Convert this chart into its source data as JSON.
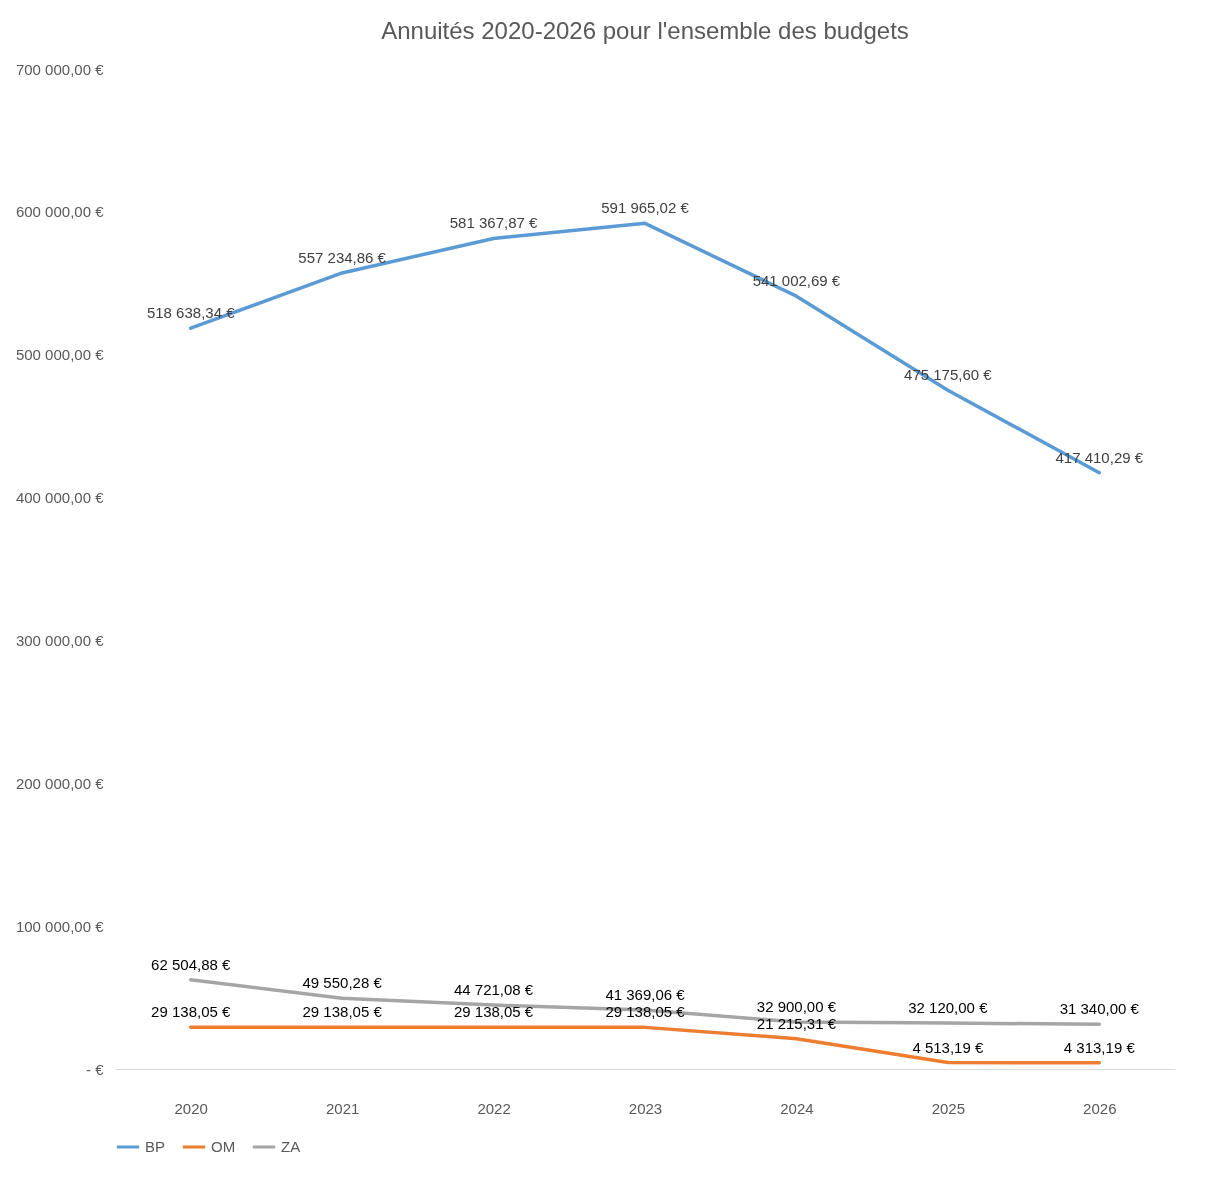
{
  "chart_data": {
    "type": "line",
    "title": "Annuités 2020-2026 pour l'ensemble des budgets",
    "categories": [
      "2020",
      "2021",
      "2022",
      "2023",
      "2024",
      "2025",
      "2026"
    ],
    "series": [
      {
        "name": "BP",
        "color": "#5b9bd5",
        "values": [
          518638.34,
          557234.86,
          581367.87,
          591965.02,
          541002.69,
          475175.6,
          417410.29
        ],
        "value_labels": [
          "518 638,34 €",
          "557 234,86 €",
          "581 367,87 €",
          "591 965,02 €",
          "541 002,69 €",
          "475 175,60 €",
          "417 410,29 €"
        ]
      },
      {
        "name": "OM",
        "color": "#ed7d31",
        "values": [
          29138.05,
          29138.05,
          29138.05,
          29138.05,
          21215.31,
          4513.19,
          4313.19
        ],
        "value_labels": [
          "29 138,05 €",
          "29 138,05 €",
          "29 138,05 €",
          "29 138,05 €",
          "21 215,31 €",
          "4 513,19 €",
          "4 313,19 €"
        ]
      },
      {
        "name": "ZA",
        "color": "#a5a5a5",
        "values": [
          62504.88,
          49550.28,
          44721.08,
          41369.06,
          32900,
          32120,
          31340
        ],
        "value_labels": [
          "62 504,88 €",
          "49 550,28 €",
          "44 721,08 €",
          "41 369,06 €",
          "32 900,00 €",
          "32 120,00 €",
          "31 340,00 €"
        ]
      }
    ],
    "ylim": [
      0,
      700000
    ],
    "yticks": [
      {
        "value": 0,
        "label": "-  €"
      },
      {
        "value": 100000,
        "label": "100 000,00 €"
      },
      {
        "value": 200000,
        "label": "200 000,00 €"
      },
      {
        "value": 300000,
        "label": "300 000,00 €"
      },
      {
        "value": 400000,
        "label": "400 000,00 €"
      },
      {
        "value": 500000,
        "label": "500 000,00 €"
      },
      {
        "value": 600000,
        "label": "600 000,00 €"
      },
      {
        "value": 700000,
        "label": "700 000,00 €"
      }
    ],
    "grid": false,
    "legend": "bottom",
    "marker": "none",
    "line_style": "solid"
  }
}
